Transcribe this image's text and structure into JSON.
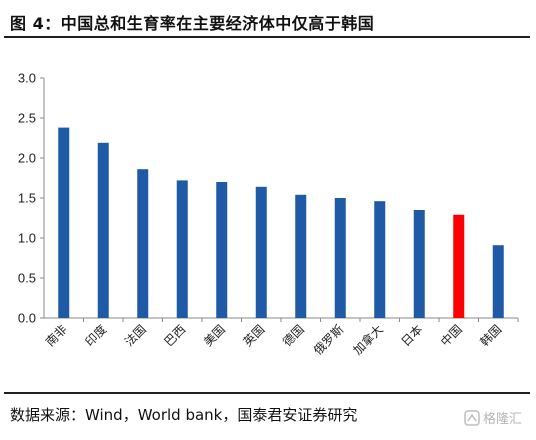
{
  "title": "图 4：中国总和生育率在主要经济体中仅高于韩国",
  "source": "数据来源：Wind，World bank，国泰君安证券研究",
  "watermark": "格隆汇",
  "colors": {
    "bar": "#1f5aa6",
    "highlight": "#ff0000",
    "axis": "#888888"
  },
  "chart_data": {
    "type": "bar",
    "title": "",
    "xlabel": "",
    "ylabel": "",
    "categories": [
      "南非",
      "印度",
      "法国",
      "巴西",
      "美国",
      "英国",
      "德国",
      "俄罗斯",
      "加拿大",
      "日本",
      "中国",
      "韩国"
    ],
    "values": [
      2.38,
      2.19,
      1.86,
      1.72,
      1.7,
      1.64,
      1.54,
      1.5,
      1.46,
      1.35,
      1.29,
      0.91
    ],
    "highlight_category": "中国",
    "ylim": [
      0,
      3
    ],
    "yticks": [
      "0.0",
      "0.5",
      "1.0",
      "1.5",
      "2.0",
      "2.5",
      "3.0"
    ],
    "grid": false,
    "legend": "none"
  }
}
